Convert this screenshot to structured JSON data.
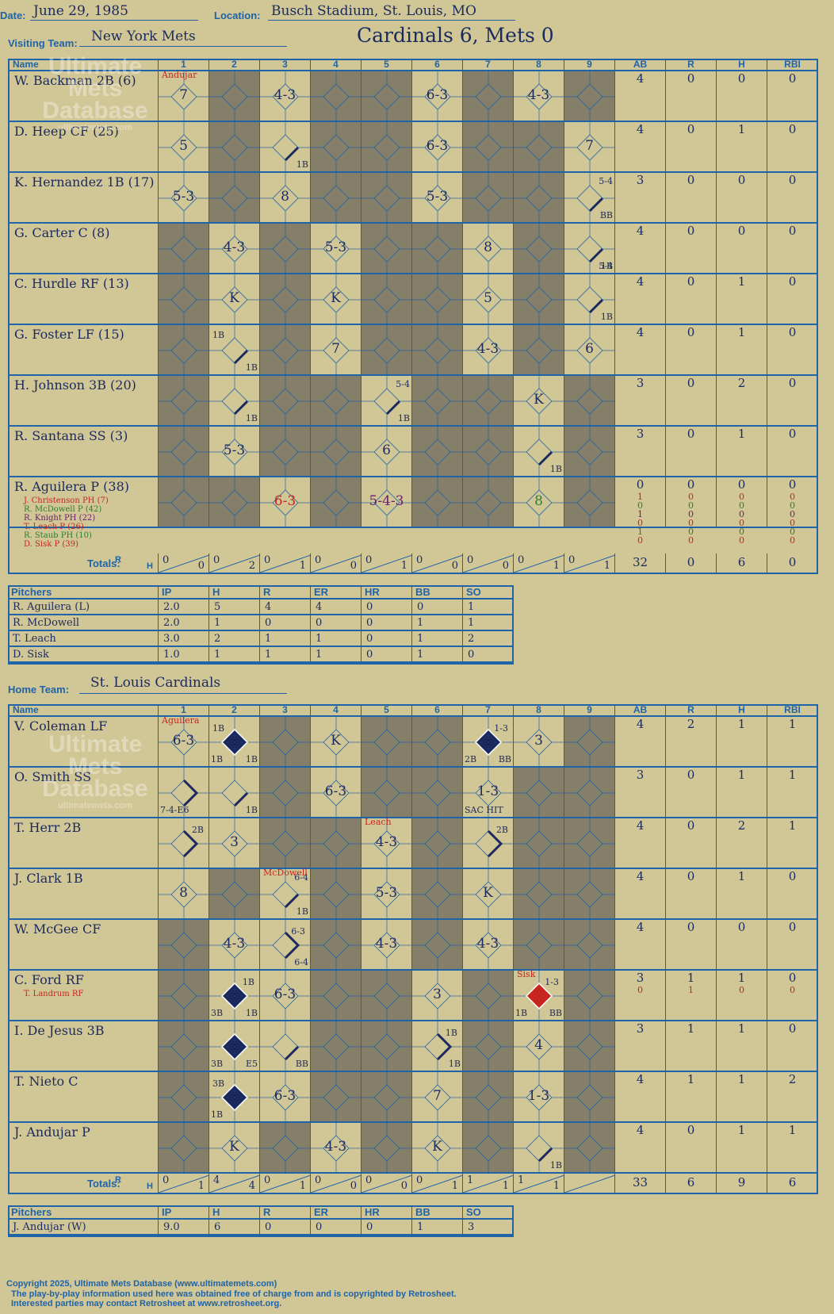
{
  "header": {
    "date_label": "Date:",
    "date": "June 29, 1985",
    "location_label": "Location:",
    "location": "Busch Stadium, St. Louis, MO",
    "visiting_label": "Visiting Team:",
    "visiting_team": "New York Mets",
    "result": "Cardinals 6, Mets 0",
    "home_label": "Home Team:",
    "home_team": "St. Louis Cardinals"
  },
  "columns": [
    "Name",
    "1",
    "2",
    "3",
    "4",
    "5",
    "6",
    "7",
    "8",
    "9",
    "AB",
    "R",
    "H",
    "RBI"
  ],
  "watermark": [
    "Ultimate",
    "Mets",
    "Database",
    "ultimatemets.com"
  ],
  "visitors": {
    "rows": [
      {
        "name": "W. Backman 2B (6)",
        "ab": "4",
        "r": "0",
        "h": "0",
        "rbi": "0",
        "innings": [
          {
            "t": "7",
            "note": "Andujar"
          },
          {
            "shade": true
          },
          {
            "t": "4-3"
          },
          {
            "shade": true
          },
          {
            "shade": true
          },
          {
            "t": "6-3"
          },
          {
            "shade": true
          },
          {
            "t": "4-3"
          },
          {
            "shade": true
          }
        ]
      },
      {
        "name": "D. Heep CF (25)",
        "ab": "4",
        "r": "0",
        "h": "1",
        "rbi": "0",
        "innings": [
          {
            "t": "5"
          },
          {
            "shade": true
          },
          {
            "t": "",
            "hit": "1B"
          },
          {
            "shade": true
          },
          {
            "shade": true
          },
          {
            "t": "6-3"
          },
          {
            "shade": true
          },
          {
            "shade": true
          },
          {
            "t": "7"
          }
        ]
      },
      {
        "name": "K. Hernandez 1B (17)",
        "ab": "3",
        "r": "0",
        "h": "0",
        "rbi": "0",
        "innings": [
          {
            "t": "5-3"
          },
          {
            "shade": true
          },
          {
            "t": "8"
          },
          {
            "shade": true
          },
          {
            "shade": true
          },
          {
            "t": "5-3"
          },
          {
            "shade": true
          },
          {
            "shade": true
          },
          {
            "t": "",
            "hit": "BB",
            "top": "5-4"
          }
        ]
      },
      {
        "name": "G. Carter C (8)",
        "ab": "4",
        "r": "0",
        "h": "0",
        "rbi": "0",
        "innings": [
          {
            "shade": true
          },
          {
            "t": "4-3"
          },
          {
            "shade": true
          },
          {
            "t": "5-3"
          },
          {
            "shade": true
          },
          {
            "shade": true
          },
          {
            "t": "8"
          },
          {
            "shade": true
          },
          {
            "t": "",
            "hit": "1B",
            "bot": "5-4"
          }
        ]
      },
      {
        "name": "C. Hurdle RF (13)",
        "ab": "4",
        "r": "0",
        "h": "1",
        "rbi": "0",
        "innings": [
          {
            "shade": true
          },
          {
            "t": "K"
          },
          {
            "shade": true
          },
          {
            "t": "K"
          },
          {
            "shade": true
          },
          {
            "shade": true
          },
          {
            "t": "5"
          },
          {
            "shade": true
          },
          {
            "t": "",
            "hit": "1B"
          }
        ]
      },
      {
        "name": "G. Foster LF (15)",
        "ab": "4",
        "r": "0",
        "h": "1",
        "rbi": "0",
        "innings": [
          {
            "shade": true
          },
          {
            "t": "",
            "hit": "1B",
            "top2": "1B"
          },
          {
            "shade": true
          },
          {
            "t": "7"
          },
          {
            "shade": true
          },
          {
            "shade": true
          },
          {
            "t": "4-3"
          },
          {
            "shade": true
          },
          {
            "t": "6"
          }
        ]
      },
      {
        "name": "H. Johnson 3B (20)",
        "ab": "3",
        "r": "0",
        "h": "2",
        "rbi": "0",
        "innings": [
          {
            "shade": true
          },
          {
            "t": "",
            "hit": "1B"
          },
          {
            "shade": true
          },
          {
            "shade": true
          },
          {
            "t": "",
            "hit": "1B",
            "top": "5-4"
          },
          {
            "shade": true
          },
          {
            "shade": true
          },
          {
            "t": "K"
          },
          {
            "shade": true
          }
        ]
      },
      {
        "name": "R. Santana SS (3)",
        "ab": "3",
        "r": "0",
        "h": "1",
        "rbi": "0",
        "innings": [
          {
            "shade": true
          },
          {
            "t": "5-3"
          },
          {
            "shade": true
          },
          {
            "shade": true
          },
          {
            "t": "6"
          },
          {
            "shade": true
          },
          {
            "shade": true
          },
          {
            "t": "",
            "hit": "1B"
          },
          {
            "shade": true
          }
        ]
      },
      {
        "name": "R. Aguilera P (38)",
        "ab": "0",
        "r": "0",
        "h": "0",
        "rbi": "0",
        "innings": [
          {
            "shade": true
          },
          {
            "shade": true
          },
          {
            "t": "6-3",
            "color": "red"
          },
          {
            "shade": true
          },
          {
            "t": "5-4-3",
            "color": "purple"
          },
          {
            "shade": true
          },
          {
            "shade": true
          },
          {
            "t": "8",
            "color": "green"
          },
          {
            "shade": true
          }
        ],
        "subs": [
          {
            "name": "J. Christenson PH (7)",
            "color": "red",
            "ab": "1",
            "r": "0",
            "h": "0",
            "rbi": "0"
          },
          {
            "name": "R. McDowell P (42)",
            "color": "green",
            "ab": "0",
            "r": "0",
            "h": "0",
            "rbi": "0"
          },
          {
            "name": "R. Knight PH (22)",
            "color": "purple",
            "ab": "1",
            "r": "0",
            "h": "0",
            "rbi": "0"
          },
          {
            "name": "T. Leach P (26)",
            "color": "red",
            "ab": "0",
            "r": "0",
            "h": "0",
            "rbi": "0"
          },
          {
            "name": "R. Staub PH (10)",
            "color": "green",
            "ab": "1",
            "r": "0",
            "h": "0",
            "rbi": "0"
          },
          {
            "name": "D. Sisk P (39)",
            "color": "red",
            "ab": "0",
            "r": "0",
            "h": "0",
            "rbi": "0"
          }
        ]
      }
    ],
    "totals_label": "Totals:",
    "rh": [
      "R",
      "H"
    ],
    "inning_totals": [
      [
        "0",
        "0"
      ],
      [
        "0",
        "2"
      ],
      [
        "0",
        "1"
      ],
      [
        "0",
        "0"
      ],
      [
        "0",
        "1"
      ],
      [
        "0",
        "0"
      ],
      [
        "0",
        "0"
      ],
      [
        "0",
        "1"
      ],
      [
        "0",
        "1"
      ]
    ],
    "totals": {
      "ab": "32",
      "r": "0",
      "h": "6",
      "rbi": "0"
    },
    "pitchers_header": [
      "Pitchers",
      "IP",
      "H",
      "R",
      "ER",
      "HR",
      "BB",
      "SO"
    ],
    "pitchers": [
      [
        "R. Aguilera (L)",
        "2.0",
        "5",
        "4",
        "4",
        "0",
        "0",
        "1"
      ],
      [
        "R. McDowell",
        "2.0",
        "1",
        "0",
        "0",
        "0",
        "1",
        "1"
      ],
      [
        "T. Leach",
        "3.0",
        "2",
        "1",
        "1",
        "0",
        "1",
        "2"
      ],
      [
        "D. Sisk",
        "1.0",
        "1",
        "1",
        "1",
        "0",
        "1",
        "0"
      ]
    ]
  },
  "home": {
    "rows": [
      {
        "name": "V. Coleman LF",
        "ab": "4",
        "r": "2",
        "h": "1",
        "rbi": "1",
        "innings": [
          {
            "t": "6-3",
            "note": "Aguilera"
          },
          {
            "t": "",
            "run": true,
            "tl": "1B",
            "bl": "1B",
            "br": "1B"
          },
          {
            "shade": true
          },
          {
            "t": "K"
          },
          {
            "shade": true
          },
          {
            "shade": true
          },
          {
            "t": "",
            "run": true,
            "tr": "1-3",
            "bl": "2B",
            "br": "BB"
          },
          {
            "t": "3"
          },
          {
            "shade": true
          }
        ]
      },
      {
        "name": "O. Smith SS",
        "ab": "3",
        "r": "0",
        "h": "1",
        "rbi": "1",
        "innings": [
          {
            "t": "",
            "hit2": true,
            "bl": "7-4-E6"
          },
          {
            "t": "",
            "hit": "1B"
          },
          {
            "shade": true
          },
          {
            "t": "6-3"
          },
          {
            "shade": true
          },
          {
            "shade": true
          },
          {
            "t": "1-3",
            "bl": "SAC HIT"
          },
          {
            "shade": true
          },
          {
            "shade": true
          }
        ]
      },
      {
        "name": "T. Herr 2B",
        "ab": "4",
        "r": "0",
        "h": "2",
        "rbi": "1",
        "innings": [
          {
            "t": "",
            "hit2": true,
            "tr": "2B"
          },
          {
            "t": "3"
          },
          {
            "shade": true
          },
          {
            "shade": true
          },
          {
            "t": "4-3",
            "note": "Leach"
          },
          {
            "shade": true
          },
          {
            "t": "",
            "hit2": true,
            "tr": "2B"
          },
          {
            "shade": true
          },
          {
            "shade": true
          }
        ]
      },
      {
        "name": "J. Clark 1B",
        "ab": "4",
        "r": "0",
        "h": "1",
        "rbi": "0",
        "innings": [
          {
            "t": "8"
          },
          {
            "shade": true
          },
          {
            "t": "",
            "hit": "1B",
            "top": "6-4",
            "note": "McDowell"
          },
          {
            "shade": true
          },
          {
            "t": "5-3"
          },
          {
            "shade": true
          },
          {
            "t": "K"
          },
          {
            "shade": true
          },
          {
            "shade": true
          }
        ]
      },
      {
        "name": "W. McGee CF",
        "ab": "4",
        "r": "0",
        "h": "0",
        "rbi": "0",
        "innings": [
          {
            "shade": true
          },
          {
            "t": "4-3"
          },
          {
            "t": "",
            "hit2": true,
            "tr": "6-3",
            "br": "6-4"
          },
          {
            "shade": true
          },
          {
            "t": "4-3"
          },
          {
            "shade": true
          },
          {
            "t": "4-3"
          },
          {
            "shade": true
          },
          {
            "shade": true
          }
        ]
      },
      {
        "name": "C. Ford RF",
        "ab": "3",
        "r": "1",
        "h": "1",
        "rbi": "0",
        "innings": [
          {
            "shade": true
          },
          {
            "t": "",
            "run": true,
            "tr": "1B",
            "bl": "3B",
            "br": "1B"
          },
          {
            "t": "6-3"
          },
          {
            "shade": true
          },
          {
            "shade": true
          },
          {
            "t": "3"
          },
          {
            "shade": true
          },
          {
            "t": "",
            "run": true,
            "runred": true,
            "tr": "1-3",
            "bl": "1B",
            "br": "BB",
            "note": "Sisk"
          },
          {
            "shade": true
          }
        ],
        "subs": [
          {
            "name": "T. Landrum RF",
            "color": "red",
            "ab": "0",
            "r": "1",
            "h": "0",
            "rbi": "0"
          }
        ]
      },
      {
        "name": "I. De Jesus 3B",
        "ab": "3",
        "r": "1",
        "h": "1",
        "rbi": "0",
        "innings": [
          {
            "shade": true
          },
          {
            "t": "",
            "run": true,
            "bl": "3B",
            "br": "E5"
          },
          {
            "t": "",
            "hit": "BB"
          },
          {
            "shade": true
          },
          {
            "shade": true
          },
          {
            "t": "",
            "hit2": true,
            "tr": "1B",
            "br": "1B"
          },
          {
            "shade": true
          },
          {
            "t": "4"
          },
          {
            "shade": true
          }
        ]
      },
      {
        "name": "T. Nieto C",
        "ab": "4",
        "r": "1",
        "h": "1",
        "rbi": "2",
        "innings": [
          {
            "shade": true
          },
          {
            "t": "",
            "run": true,
            "tl": "3B",
            "bl": "1B"
          },
          {
            "t": "6-3"
          },
          {
            "shade": true
          },
          {
            "shade": true
          },
          {
            "t": "7"
          },
          {
            "shade": true
          },
          {
            "t": "1-3"
          },
          {
            "shade": true
          }
        ]
      },
      {
        "name": "J. Andujar P",
        "ab": "4",
        "r": "0",
        "h": "1",
        "rbi": "1",
        "innings": [
          {
            "shade": true
          },
          {
            "t": "K"
          },
          {
            "shade": true
          },
          {
            "t": "4-3"
          },
          {
            "shade": true
          },
          {
            "t": "K"
          },
          {
            "shade": true
          },
          {
            "t": "",
            "hit": "1B"
          },
          {
            "shade": true
          }
        ]
      }
    ],
    "totals_label": "Totals:",
    "rh": [
      "R",
      "H"
    ],
    "inning_totals": [
      [
        "0",
        "1"
      ],
      [
        "4",
        "4"
      ],
      [
        "0",
        "1"
      ],
      [
        "0",
        "0"
      ],
      [
        "0",
        "0"
      ],
      [
        "0",
        "1"
      ],
      [
        "1",
        "1"
      ],
      [
        "1",
        "1"
      ],
      [
        "",
        ""
      ]
    ],
    "totals": {
      "ab": "33",
      "r": "6",
      "h": "9",
      "rbi": "6"
    },
    "pitchers_header": [
      "Pitchers",
      "IP",
      "H",
      "R",
      "ER",
      "HR",
      "BB",
      "SO"
    ],
    "pitchers": [
      [
        "J. Andujar (W)",
        "9.0",
        "6",
        "0",
        "0",
        "0",
        "1",
        "3"
      ]
    ]
  },
  "footer": [
    "Copyright 2025, Ultimate Mets Database (www.ultimatemets.com)",
    "The play-by-play information used here was obtained free of charge from and is copyrighted by Retrosheet.",
    "Interested parties may contact Retrosheet at www.retrosheet.org."
  ],
  "colors": {
    "line": "#1f63a8",
    "ink": "#1b2a5e",
    "shade": "#857f6a",
    "paper": "#d1c695",
    "red": "#c8251f",
    "green": "#2e7d32",
    "purple": "#6a1f6a"
  }
}
